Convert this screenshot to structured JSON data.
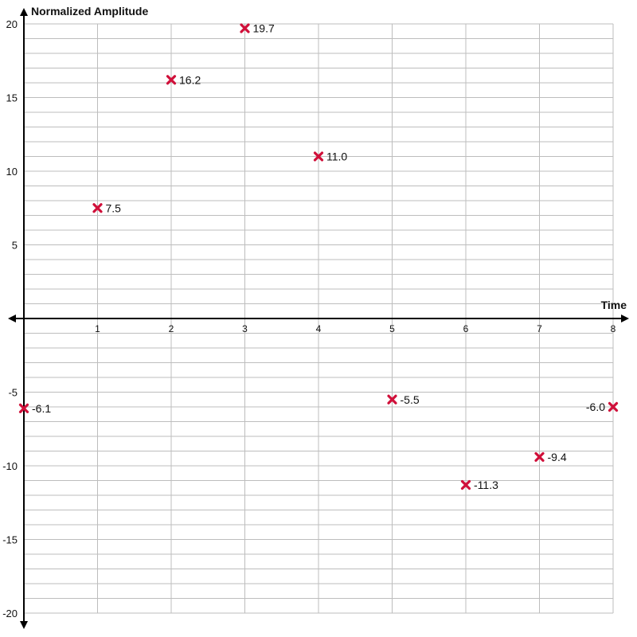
{
  "chart_data": {
    "type": "scatter",
    "title": "",
    "xlabel": "Time",
    "ylabel": "Normalized Amplitude",
    "xlim": [
      0,
      8
    ],
    "ylim": [
      -20,
      20
    ],
    "x_ticks": [
      1,
      2,
      3,
      4,
      5,
      6,
      7,
      8
    ],
    "y_ticks": [
      20,
      15,
      10,
      5,
      -5,
      -10,
      -15,
      -20
    ],
    "grid": true,
    "marker": "x",
    "marker_color": "#d0103a",
    "points": [
      {
        "x": 0,
        "y": -6.1,
        "label": "-6.1"
      },
      {
        "x": 1,
        "y": 7.5,
        "label": "7.5"
      },
      {
        "x": 2,
        "y": 16.2,
        "label": "16.2"
      },
      {
        "x": 3,
        "y": 19.7,
        "label": "19.7"
      },
      {
        "x": 4,
        "y": 11.0,
        "label": "11.0"
      },
      {
        "x": 5,
        "y": -5.5,
        "label": "-5.5"
      },
      {
        "x": 6,
        "y": -11.3,
        "label": "-11.3"
      },
      {
        "x": 7,
        "y": -9.4,
        "label": "-9.4"
      },
      {
        "x": 8,
        "y": -6.0,
        "label": "-6.0"
      }
    ]
  }
}
